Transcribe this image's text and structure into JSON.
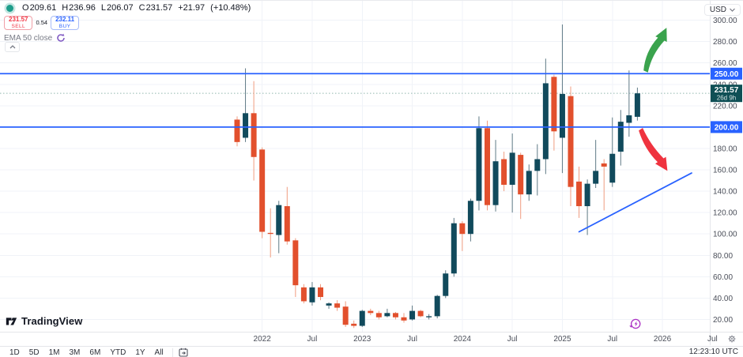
{
  "header": {
    "ohlc": {
      "o_label": "O",
      "o_value": "209.61",
      "h_label": "H",
      "h_value": "236.96",
      "l_label": "L",
      "l_value": "206.07",
      "c_label": "C",
      "c_value": "231.57",
      "change": "+21.97",
      "change_pct": "(+10.48%)"
    },
    "sell": {
      "price": "231.57",
      "label": "SELL"
    },
    "spread": "0.54",
    "buy": {
      "price": "232.11",
      "label": "BUY"
    },
    "indicator": {
      "name": "EMA 50 close"
    }
  },
  "price_axis": {
    "currency": "USD",
    "current": {
      "label": "231.57",
      "countdown": "26d 9h"
    }
  },
  "footer": {
    "logo_text": "TradingView",
    "ranges": [
      "1D",
      "5D",
      "1M",
      "3M",
      "6M",
      "YTD",
      "1Y",
      "All"
    ],
    "clock": "12:23:10 UTC"
  },
  "chart_data": {
    "type": "candlestick",
    "interval": "1M",
    "ylim": [
      0,
      310
    ],
    "grid": true,
    "legend_position": "top-left",
    "price_ticks": [
      20,
      40,
      60,
      80,
      100,
      120,
      140,
      160,
      180,
      200,
      220,
      240,
      260,
      280,
      300
    ],
    "time_labels": [
      {
        "text": "2022",
        "index": 3
      },
      {
        "text": "Jul",
        "index": 9
      },
      {
        "text": "2023",
        "index": 15
      },
      {
        "text": "Jul",
        "index": 21
      },
      {
        "text": "2024",
        "index": 27
      },
      {
        "text": "Jul",
        "index": 33
      },
      {
        "text": "2025",
        "index": 39
      },
      {
        "text": "Jul",
        "index": 45
      },
      {
        "text": "2026",
        "index": 51
      },
      {
        "text": "Jul",
        "index": 57
      }
    ],
    "candles": [
      [
        "2021-10",
        207,
        210,
        182,
        186
      ],
      [
        "2021-11",
        190,
        255,
        186,
        213
      ],
      [
        "2021-12",
        213,
        243,
        150,
        172
      ],
      [
        "2022-01",
        179,
        181,
        96,
        102
      ],
      [
        "2022-02",
        101,
        124,
        78,
        100
      ],
      [
        "2022-03",
        99,
        131,
        82,
        127
      ],
      [
        "2022-04",
        126,
        144,
        90,
        93
      ],
      [
        "2022-05",
        94,
        96,
        41,
        52
      ],
      [
        "2022-06",
        50,
        53,
        35,
        37
      ],
      [
        "2022-07",
        36,
        55,
        33,
        50
      ],
      [
        "2022-08",
        50,
        53,
        38,
        41
      ],
      [
        "2022-09",
        33,
        36,
        30,
        35
      ],
      [
        "2022-10",
        35,
        38,
        28,
        31
      ],
      [
        "2022-11",
        32,
        37,
        13,
        15
      ],
      [
        "2022-12",
        16,
        19,
        12,
        14
      ],
      [
        "2023-01",
        14,
        29,
        13,
        28
      ],
      [
        "2023-02",
        28,
        30,
        24,
        26
      ],
      [
        "2023-03",
        26,
        28,
        20,
        22
      ],
      [
        "2023-04",
        23,
        30,
        22,
        26
      ],
      [
        "2023-05",
        26,
        27,
        20,
        22
      ],
      [
        "2023-06",
        22,
        26,
        17,
        19
      ],
      [
        "2023-07",
        20,
        33,
        19,
        28
      ],
      [
        "2023-08",
        28,
        29,
        22,
        23
      ],
      [
        "2023-09",
        22,
        25,
        20,
        23
      ],
      [
        "2023-10",
        23,
        43,
        21,
        42
      ],
      [
        "2023-11",
        42,
        66,
        40,
        63
      ],
      [
        "2023-12",
        63,
        115,
        60,
        110
      ],
      [
        "2024-01",
        110,
        112,
        84,
        100
      ],
      [
        "2024-02",
        100,
        133,
        93,
        131
      ],
      [
        "2024-03",
        131,
        210,
        122,
        199
      ],
      [
        "2024-04",
        199,
        206,
        122,
        127
      ],
      [
        "2024-05",
        127,
        188,
        121,
        168
      ],
      [
        "2024-06",
        170,
        177,
        140,
        146
      ],
      [
        "2024-07",
        146,
        194,
        120,
        176
      ],
      [
        "2024-08",
        174,
        176,
        114,
        137
      ],
      [
        "2024-09",
        137,
        165,
        131,
        159
      ],
      [
        "2024-10",
        159,
        184,
        136,
        170
      ],
      [
        "2024-11",
        170,
        264,
        156,
        241
      ],
      [
        "2024-12",
        247,
        249,
        178,
        196
      ],
      [
        "2025-01",
        190,
        296,
        157,
        231
      ],
      [
        "2025-02",
        229,
        238,
        126,
        144
      ],
      [
        "2025-03",
        149,
        163,
        115,
        126
      ],
      [
        "2025-04",
        126,
        151,
        99,
        147
      ],
      [
        "2025-05",
        147,
        188,
        143,
        159
      ],
      [
        "2025-06",
        166,
        170,
        122,
        163
      ],
      [
        "2025-07",
        148,
        209,
        144,
        175
      ],
      [
        "2025-08",
        177,
        216,
        164,
        205
      ],
      [
        "2025-09",
        204,
        253,
        191,
        211
      ],
      [
        "2025-10",
        209.61,
        236.96,
        206.07,
        231.57
      ]
    ],
    "price_lines": [
      {
        "price": 250,
        "label": "250.00"
      },
      {
        "price": 200,
        "label": "200.00"
      }
    ],
    "current_price": {
      "value": 231.57,
      "label": "231.57",
      "countdown": "26d 9h"
    },
    "trendline": {
      "from": {
        "index": 41,
        "price": 102
      },
      "to": {
        "index": 54.5,
        "price": 157
      }
    },
    "arrows": [
      {
        "direction": "up",
        "from": {
          "index": 49.0,
          "price": 252
        },
        "to": {
          "index": 51.5,
          "price": 293
        }
      },
      {
        "direction": "down",
        "from": {
          "index": 48.4,
          "price": 198
        },
        "to": {
          "index": 51.6,
          "price": 159
        }
      }
    ],
    "colors": {
      "up": "#114a5c",
      "down": "#e2502d",
      "up_wick": "#5f7a86",
      "down_wick": "#f09c80",
      "level_line": "#2962ff",
      "trend_line": "#2962ff",
      "arrow_up": "#3aa34d",
      "arrow_down": "#ef333f",
      "current_label_bg": "#0f4f55"
    }
  }
}
